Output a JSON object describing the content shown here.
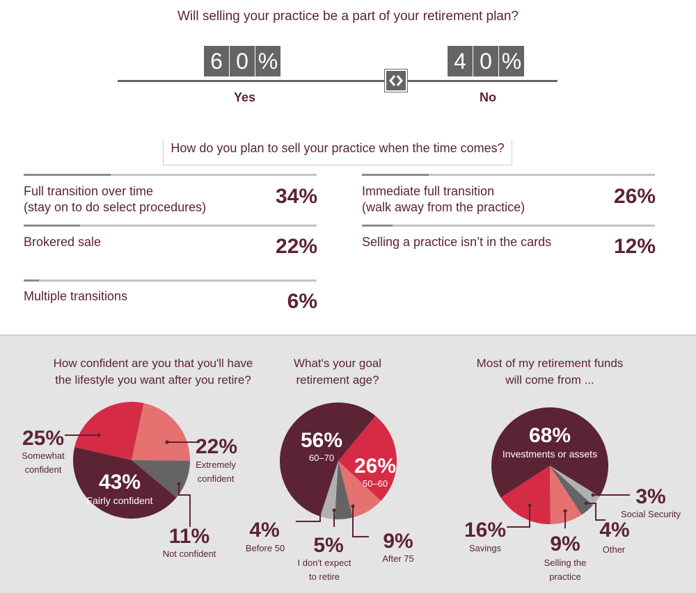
{
  "question1": {
    "title": "Will selling your practice be a part of your retirement plan?",
    "yes": {
      "label": "Yes",
      "digits": [
        "6",
        "0",
        "%"
      ],
      "value": 60
    },
    "no": {
      "label": "No",
      "digits": [
        "4",
        "0",
        "%"
      ],
      "value": 40
    }
  },
  "question2": {
    "title": "How do you plan to sell your practice when the time comes?",
    "options": [
      {
        "line1": "Full transition over time",
        "line2": "(stay on to do select procedures)",
        "pct": "34%",
        "value": 34
      },
      {
        "line1": "Immediate full transition",
        "line2": "(walk away from the practice)",
        "pct": "26%",
        "value": 26
      },
      {
        "line1": "Brokered sale",
        "line2": "",
        "pct": "22%",
        "value": 22
      },
      {
        "line1": "Selling a practice isn’t in the cards",
        "line2": "",
        "pct": "12%",
        "value": 12
      },
      {
        "line1": "Multiple transitions",
        "line2": "",
        "pct": "6%",
        "value": 6
      }
    ]
  },
  "colors": {
    "dark": "#5b2333",
    "red": "#d62b45",
    "salmon": "#e57171",
    "gray": "#646464",
    "lightgray": "#b0b0b0",
    "panel": "#e4e4e4"
  },
  "chart_data": [
    {
      "type": "pie",
      "title_line1": "How confident are you that you'll have",
      "title_line2": "the lifestyle you want after you retire?",
      "slices": [
        {
          "pct": "25%",
          "value": 25,
          "label_line1": "Somewhat",
          "label_line2": "confident"
        },
        {
          "pct": "22%",
          "value": 22,
          "label_line1": "Extremely",
          "label_line2": "confident"
        },
        {
          "pct": "11%",
          "value": 11,
          "label_line1": "Not confident",
          "label_line2": ""
        },
        {
          "pct": "43%",
          "value": 43,
          "label_line1": "Fairly confident",
          "label_line2": ""
        }
      ]
    },
    {
      "type": "pie",
      "title_line1": "What's your goal",
      "title_line2": "retirement age?",
      "slices": [
        {
          "pct": "56%",
          "value": 56,
          "label_line1": "60–70",
          "label_line2": ""
        },
        {
          "pct": "26%",
          "value": 26,
          "label_line1": "50–60",
          "label_line2": ""
        },
        {
          "pct": "9%",
          "value": 9,
          "label_line1": "After 75",
          "label_line2": ""
        },
        {
          "pct": "5%",
          "value": 5,
          "label_line1": "I don't expect",
          "label_line2": "to retire"
        },
        {
          "pct": "4%",
          "value": 4,
          "label_line1": "Before 50",
          "label_line2": ""
        }
      ]
    },
    {
      "type": "pie",
      "title_line1": "Most of my retirement funds",
      "title_line2": "will come from ...",
      "slices": [
        {
          "pct": "68%",
          "value": 68,
          "label_line1": "Investments or assets",
          "label_line2": ""
        },
        {
          "pct": "3%",
          "value": 3,
          "label_line1": "Social Security",
          "label_line2": ""
        },
        {
          "pct": "4%",
          "value": 4,
          "label_line1": "Other",
          "label_line2": ""
        },
        {
          "pct": "9%",
          "value": 9,
          "label_line1": "Selling the",
          "label_line2": "practice"
        },
        {
          "pct": "16%",
          "value": 16,
          "label_line1": "Savings",
          "label_line2": ""
        }
      ]
    }
  ]
}
